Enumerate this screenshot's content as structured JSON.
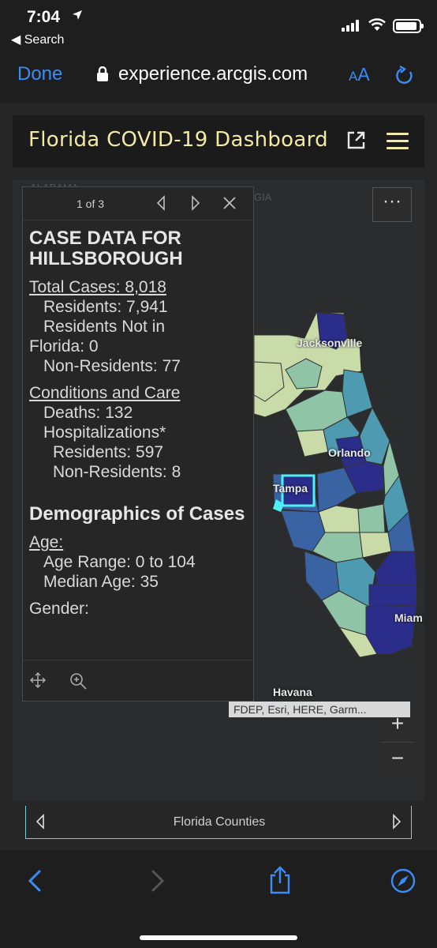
{
  "status_bar": {
    "time": "7:04",
    "back_label": "◀ Search"
  },
  "browser": {
    "done_label": "Done",
    "url": "experience.arcgis.com",
    "text_size_label_small": "A",
    "text_size_label_large": "A"
  },
  "dashboard": {
    "title": "Florida COVID-19 Dashboard"
  },
  "map": {
    "cities": [
      "Jacksonville",
      "Orlando",
      "Tampa",
      "Havana",
      "Miam"
    ],
    "background_labels": [
      "ALABAMA",
      "GIA"
    ],
    "attribution": "FDEP, Esri, HERE, Garm...",
    "zoom_in": "+",
    "zoom_out": "−",
    "more_label": "···",
    "colors": {
      "land": "#2a2b2c",
      "low": "#c9dba9",
      "mid_low": "#8fc4a6",
      "mid": "#4e9ab1",
      "mid_high": "#3a63a3",
      "high": "#2a2d8a",
      "selection": "#4ef0f5"
    }
  },
  "popup": {
    "pager": "1 of 3",
    "heading": "CASE DATA FOR HILLSBOROUGH",
    "total_cases": "Total Cases: 8,018",
    "residents": "Residents: 7,941",
    "residents_not_in": "Residents Not in",
    "florida": "Florida: 0",
    "non_residents": "Non-Residents: 77",
    "conditions_heading": "Conditions and Care",
    "deaths": "Deaths: 132",
    "hospitalizations": "Hospitalizations*",
    "hosp_residents": "Residents: 597",
    "hosp_non_residents": "Non-Residents: 8",
    "demographics_heading": "Demographics of Cases",
    "age_heading": "Age:",
    "age_range": "Age Range: 0 to 104",
    "median_age": "Median Age: 35",
    "gender_heading": "Gender:"
  },
  "legend_bar": {
    "label": "Florida Counties"
  }
}
